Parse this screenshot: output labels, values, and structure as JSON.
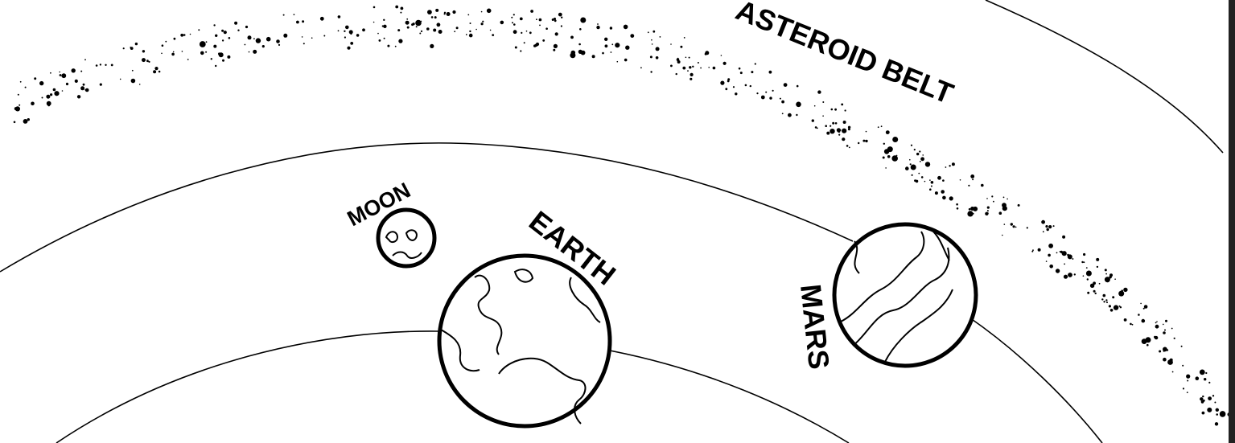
{
  "labels": {
    "asteroid_belt": "ASTEROID BELT",
    "moon": "MOON",
    "earth": "EARTH",
    "mars": "MARS"
  }
}
